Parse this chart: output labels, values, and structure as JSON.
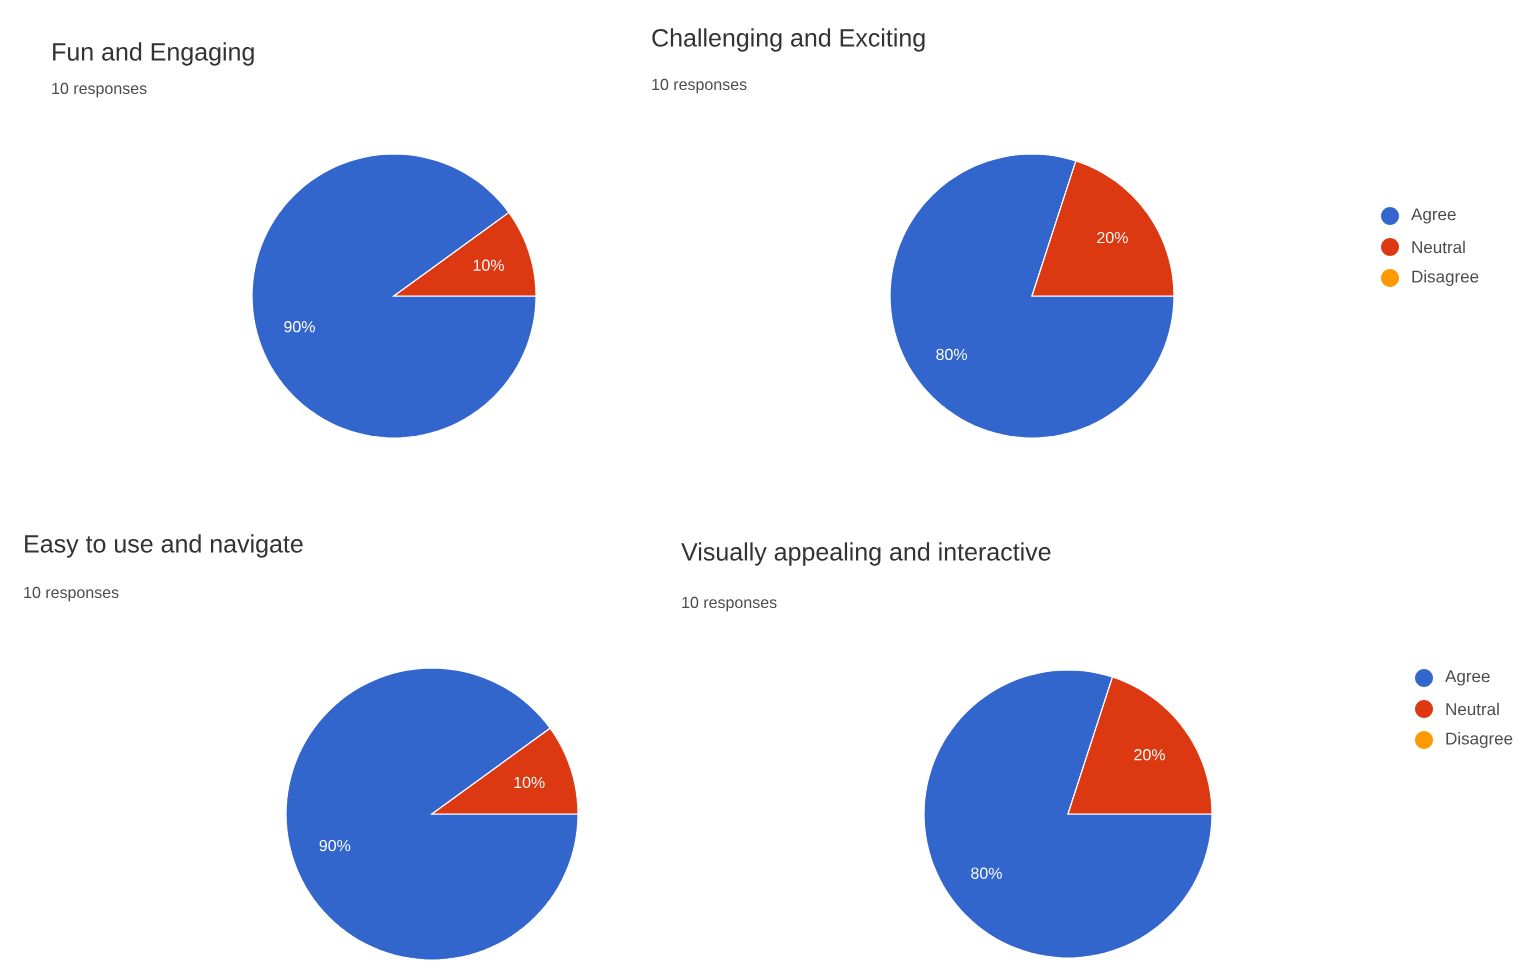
{
  "chart_data": [
    {
      "type": "pie",
      "title": "Fun and Engaging",
      "subtitle": "10 responses",
      "categories": [
        null,
        null,
        null
      ],
      "values": [
        90,
        10,
        0
      ],
      "colors": [
        "#3366cc",
        "#dc3912",
        "#ff9900"
      ],
      "value_labels": [
        "90%",
        "10%",
        null
      ],
      "legend": false
    },
    {
      "type": "pie",
      "title": "Challenging and Exciting",
      "subtitle": "10 responses",
      "categories": [
        "Agree",
        "Neutral",
        "Disagree"
      ],
      "values": [
        80,
        20,
        0
      ],
      "colors": [
        "#3366cc",
        "#dc3912",
        "#ff9900"
      ],
      "value_labels": [
        "80%",
        "20%",
        null
      ],
      "legend": "right"
    },
    {
      "type": "pie",
      "title": "Easy to use and navigate",
      "subtitle": "10 responses",
      "categories": [
        null,
        null,
        null
      ],
      "values": [
        90,
        10,
        0
      ],
      "colors": [
        "#3366cc",
        "#dc3912",
        "#ff9900"
      ],
      "value_labels": [
        "90%",
        "10%",
        null
      ],
      "legend": false
    },
    {
      "type": "pie",
      "title": "Visually appealing and interactive",
      "subtitle": "10 responses",
      "categories": [
        "Agree",
        "Neutral",
        "Disagree"
      ],
      "values": [
        80,
        20,
        0
      ],
      "colors": [
        "#3366cc",
        "#dc3912",
        "#ff9900"
      ],
      "value_labels": [
        "80%",
        "20%",
        null
      ],
      "legend": "right"
    }
  ]
}
